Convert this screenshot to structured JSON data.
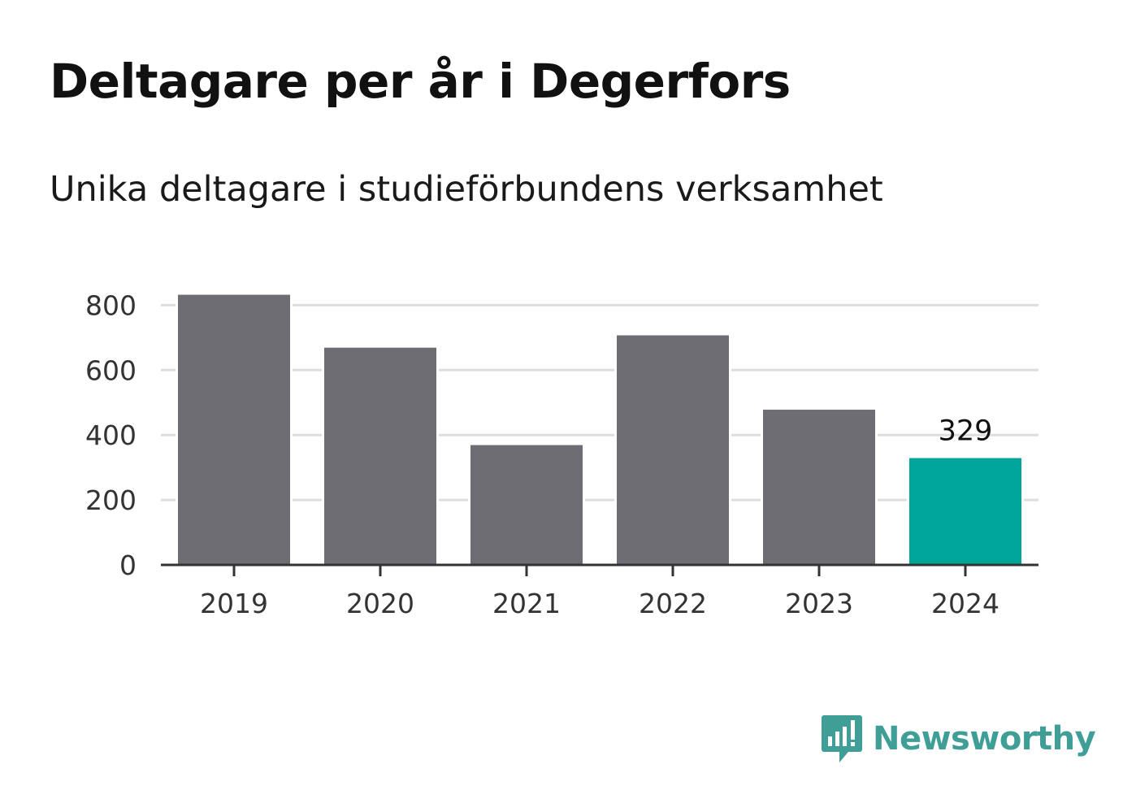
{
  "title": "Deltagare per år i Degerfors",
  "subtitle": "Unika deltagare i studieförbundens verksamhet",
  "brand": {
    "name": "Newsworthy",
    "color": "#3f9e96",
    "icon": "chat-bar-chart-icon"
  },
  "colors": {
    "bar": "#6e6d73",
    "highlight": "#00a59a",
    "grid": "#dddddd",
    "axis": "#333333"
  },
  "chart_data": {
    "type": "bar",
    "categories": [
      "2019",
      "2020",
      "2021",
      "2022",
      "2023",
      "2024"
    ],
    "values": [
      832,
      669,
      369,
      707,
      478,
      329
    ],
    "highlight_index": 5,
    "data_labels": [
      {
        "index": 5,
        "text": "329"
      }
    ],
    "yticks": [
      0,
      200,
      400,
      600,
      800
    ],
    "ylim": [
      0,
      850
    ],
    "grid": true,
    "xlabel": "",
    "ylabel": ""
  }
}
